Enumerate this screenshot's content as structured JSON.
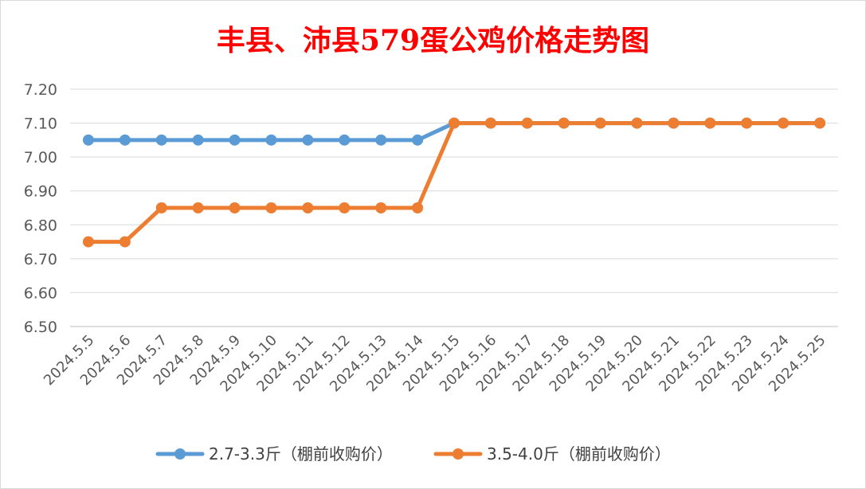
{
  "chart_data": {
    "type": "line",
    "title": "丰县、沛县579蛋公鸡价格走势图",
    "xlabel": "",
    "ylabel": "",
    "ylim": [
      6.5,
      7.2
    ],
    "yticks": [
      "6.50",
      "6.60",
      "6.70",
      "6.80",
      "6.90",
      "7.00",
      "7.10",
      "7.20"
    ],
    "grid": true,
    "legend_position": "bottom",
    "categories": [
      "2024.5.5",
      "2024.5.6",
      "2024.5.7",
      "2024.5.8",
      "2024.5.9",
      "2024.5.10",
      "2024.5.11",
      "2024.5.12",
      "2024.5.13",
      "2024.5.14",
      "2024.5.15",
      "2024.5.16",
      "2024.5.17",
      "2024.5.18",
      "2024.5.19",
      "2024.5.20",
      "2024.5.21",
      "2024.5.22",
      "2024.5.23",
      "2024.5.24",
      "2024.5.25"
    ],
    "series": [
      {
        "name": "2.7-3.3斤（棚前收购价）",
        "color": "#5b9bd5",
        "values": [
          7.05,
          7.05,
          7.05,
          7.05,
          7.05,
          7.05,
          7.05,
          7.05,
          7.05,
          7.05,
          7.1,
          7.1,
          7.1,
          7.1,
          7.1,
          7.1,
          7.1,
          7.1,
          7.1,
          7.1,
          7.1
        ]
      },
      {
        "name": "3.5-4.0斤（棚前收购价）",
        "color": "#ed7d31",
        "values": [
          6.75,
          6.75,
          6.85,
          6.85,
          6.85,
          6.85,
          6.85,
          6.85,
          6.85,
          6.85,
          7.1,
          7.1,
          7.1,
          7.1,
          7.1,
          7.1,
          7.1,
          7.1,
          7.1,
          7.1,
          7.1
        ]
      }
    ]
  }
}
